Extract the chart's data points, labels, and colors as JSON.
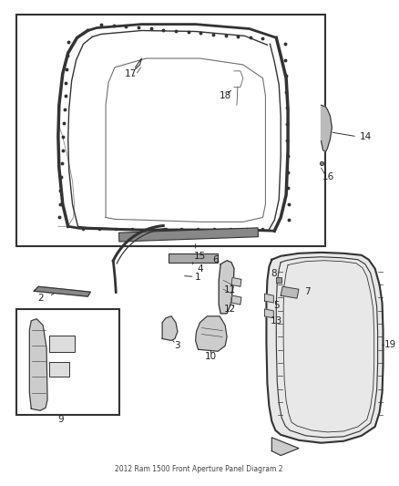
{
  "title": "2012 Ram 1500 Front Aperture Panel Diagram 2",
  "background_color": "#ffffff",
  "fig_width": 4.38,
  "fig_height": 5.33,
  "line_color": "#333333",
  "label_fontsize": 7.5
}
